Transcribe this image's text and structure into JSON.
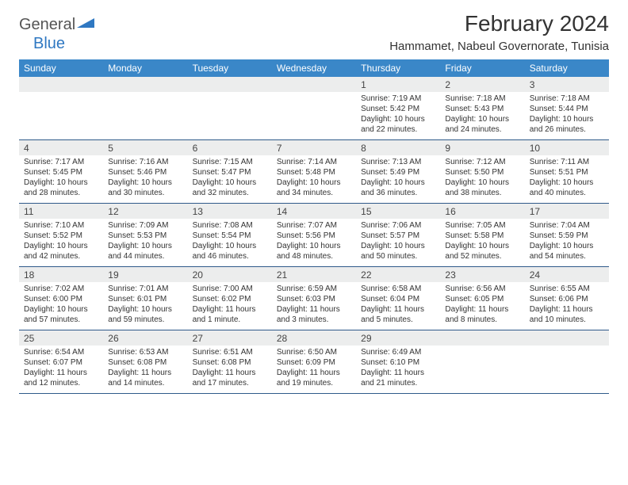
{
  "logo": {
    "word1": "General",
    "word2": "Blue",
    "color1": "#555555",
    "color2": "#2f78c2"
  },
  "title": "February 2024",
  "location": "Hammamet, Nabeul Governorate, Tunisia",
  "colors": {
    "header_bg": "#3a87c8",
    "header_fg": "#ffffff",
    "daynum_bg": "#eceded",
    "rule": "#2f5a8a",
    "text": "#333333"
  },
  "dow": [
    "Sunday",
    "Monday",
    "Tuesday",
    "Wednesday",
    "Thursday",
    "Friday",
    "Saturday"
  ],
  "weeks": [
    {
      "nums": [
        "",
        "",
        "",
        "",
        "1",
        "2",
        "3"
      ],
      "cells": [
        null,
        null,
        null,
        null,
        {
          "sunrise": "Sunrise: 7:19 AM",
          "sunset": "Sunset: 5:42 PM",
          "day1": "Daylight: 10 hours",
          "day2": "and 22 minutes."
        },
        {
          "sunrise": "Sunrise: 7:18 AM",
          "sunset": "Sunset: 5:43 PM",
          "day1": "Daylight: 10 hours",
          "day2": "and 24 minutes."
        },
        {
          "sunrise": "Sunrise: 7:18 AM",
          "sunset": "Sunset: 5:44 PM",
          "day1": "Daylight: 10 hours",
          "day2": "and 26 minutes."
        }
      ]
    },
    {
      "nums": [
        "4",
        "5",
        "6",
        "7",
        "8",
        "9",
        "10"
      ],
      "cells": [
        {
          "sunrise": "Sunrise: 7:17 AM",
          "sunset": "Sunset: 5:45 PM",
          "day1": "Daylight: 10 hours",
          "day2": "and 28 minutes."
        },
        {
          "sunrise": "Sunrise: 7:16 AM",
          "sunset": "Sunset: 5:46 PM",
          "day1": "Daylight: 10 hours",
          "day2": "and 30 minutes."
        },
        {
          "sunrise": "Sunrise: 7:15 AM",
          "sunset": "Sunset: 5:47 PM",
          "day1": "Daylight: 10 hours",
          "day2": "and 32 minutes."
        },
        {
          "sunrise": "Sunrise: 7:14 AM",
          "sunset": "Sunset: 5:48 PM",
          "day1": "Daylight: 10 hours",
          "day2": "and 34 minutes."
        },
        {
          "sunrise": "Sunrise: 7:13 AM",
          "sunset": "Sunset: 5:49 PM",
          "day1": "Daylight: 10 hours",
          "day2": "and 36 minutes."
        },
        {
          "sunrise": "Sunrise: 7:12 AM",
          "sunset": "Sunset: 5:50 PM",
          "day1": "Daylight: 10 hours",
          "day2": "and 38 minutes."
        },
        {
          "sunrise": "Sunrise: 7:11 AM",
          "sunset": "Sunset: 5:51 PM",
          "day1": "Daylight: 10 hours",
          "day2": "and 40 minutes."
        }
      ]
    },
    {
      "nums": [
        "11",
        "12",
        "13",
        "14",
        "15",
        "16",
        "17"
      ],
      "cells": [
        {
          "sunrise": "Sunrise: 7:10 AM",
          "sunset": "Sunset: 5:52 PM",
          "day1": "Daylight: 10 hours",
          "day2": "and 42 minutes."
        },
        {
          "sunrise": "Sunrise: 7:09 AM",
          "sunset": "Sunset: 5:53 PM",
          "day1": "Daylight: 10 hours",
          "day2": "and 44 minutes."
        },
        {
          "sunrise": "Sunrise: 7:08 AM",
          "sunset": "Sunset: 5:54 PM",
          "day1": "Daylight: 10 hours",
          "day2": "and 46 minutes."
        },
        {
          "sunrise": "Sunrise: 7:07 AM",
          "sunset": "Sunset: 5:56 PM",
          "day1": "Daylight: 10 hours",
          "day2": "and 48 minutes."
        },
        {
          "sunrise": "Sunrise: 7:06 AM",
          "sunset": "Sunset: 5:57 PM",
          "day1": "Daylight: 10 hours",
          "day2": "and 50 minutes."
        },
        {
          "sunrise": "Sunrise: 7:05 AM",
          "sunset": "Sunset: 5:58 PM",
          "day1": "Daylight: 10 hours",
          "day2": "and 52 minutes."
        },
        {
          "sunrise": "Sunrise: 7:04 AM",
          "sunset": "Sunset: 5:59 PM",
          "day1": "Daylight: 10 hours",
          "day2": "and 54 minutes."
        }
      ]
    },
    {
      "nums": [
        "18",
        "19",
        "20",
        "21",
        "22",
        "23",
        "24"
      ],
      "cells": [
        {
          "sunrise": "Sunrise: 7:02 AM",
          "sunset": "Sunset: 6:00 PM",
          "day1": "Daylight: 10 hours",
          "day2": "and 57 minutes."
        },
        {
          "sunrise": "Sunrise: 7:01 AM",
          "sunset": "Sunset: 6:01 PM",
          "day1": "Daylight: 10 hours",
          "day2": "and 59 minutes."
        },
        {
          "sunrise": "Sunrise: 7:00 AM",
          "sunset": "Sunset: 6:02 PM",
          "day1": "Daylight: 11 hours",
          "day2": "and 1 minute."
        },
        {
          "sunrise": "Sunrise: 6:59 AM",
          "sunset": "Sunset: 6:03 PM",
          "day1": "Daylight: 11 hours",
          "day2": "and 3 minutes."
        },
        {
          "sunrise": "Sunrise: 6:58 AM",
          "sunset": "Sunset: 6:04 PM",
          "day1": "Daylight: 11 hours",
          "day2": "and 5 minutes."
        },
        {
          "sunrise": "Sunrise: 6:56 AM",
          "sunset": "Sunset: 6:05 PM",
          "day1": "Daylight: 11 hours",
          "day2": "and 8 minutes."
        },
        {
          "sunrise": "Sunrise: 6:55 AM",
          "sunset": "Sunset: 6:06 PM",
          "day1": "Daylight: 11 hours",
          "day2": "and 10 minutes."
        }
      ]
    },
    {
      "nums": [
        "25",
        "26",
        "27",
        "28",
        "29",
        "",
        ""
      ],
      "cells": [
        {
          "sunrise": "Sunrise: 6:54 AM",
          "sunset": "Sunset: 6:07 PM",
          "day1": "Daylight: 11 hours",
          "day2": "and 12 minutes."
        },
        {
          "sunrise": "Sunrise: 6:53 AM",
          "sunset": "Sunset: 6:08 PM",
          "day1": "Daylight: 11 hours",
          "day2": "and 14 minutes."
        },
        {
          "sunrise": "Sunrise: 6:51 AM",
          "sunset": "Sunset: 6:08 PM",
          "day1": "Daylight: 11 hours",
          "day2": "and 17 minutes."
        },
        {
          "sunrise": "Sunrise: 6:50 AM",
          "sunset": "Sunset: 6:09 PM",
          "day1": "Daylight: 11 hours",
          "day2": "and 19 minutes."
        },
        {
          "sunrise": "Sunrise: 6:49 AM",
          "sunset": "Sunset: 6:10 PM",
          "day1": "Daylight: 11 hours",
          "day2": "and 21 minutes."
        },
        null,
        null
      ]
    }
  ]
}
